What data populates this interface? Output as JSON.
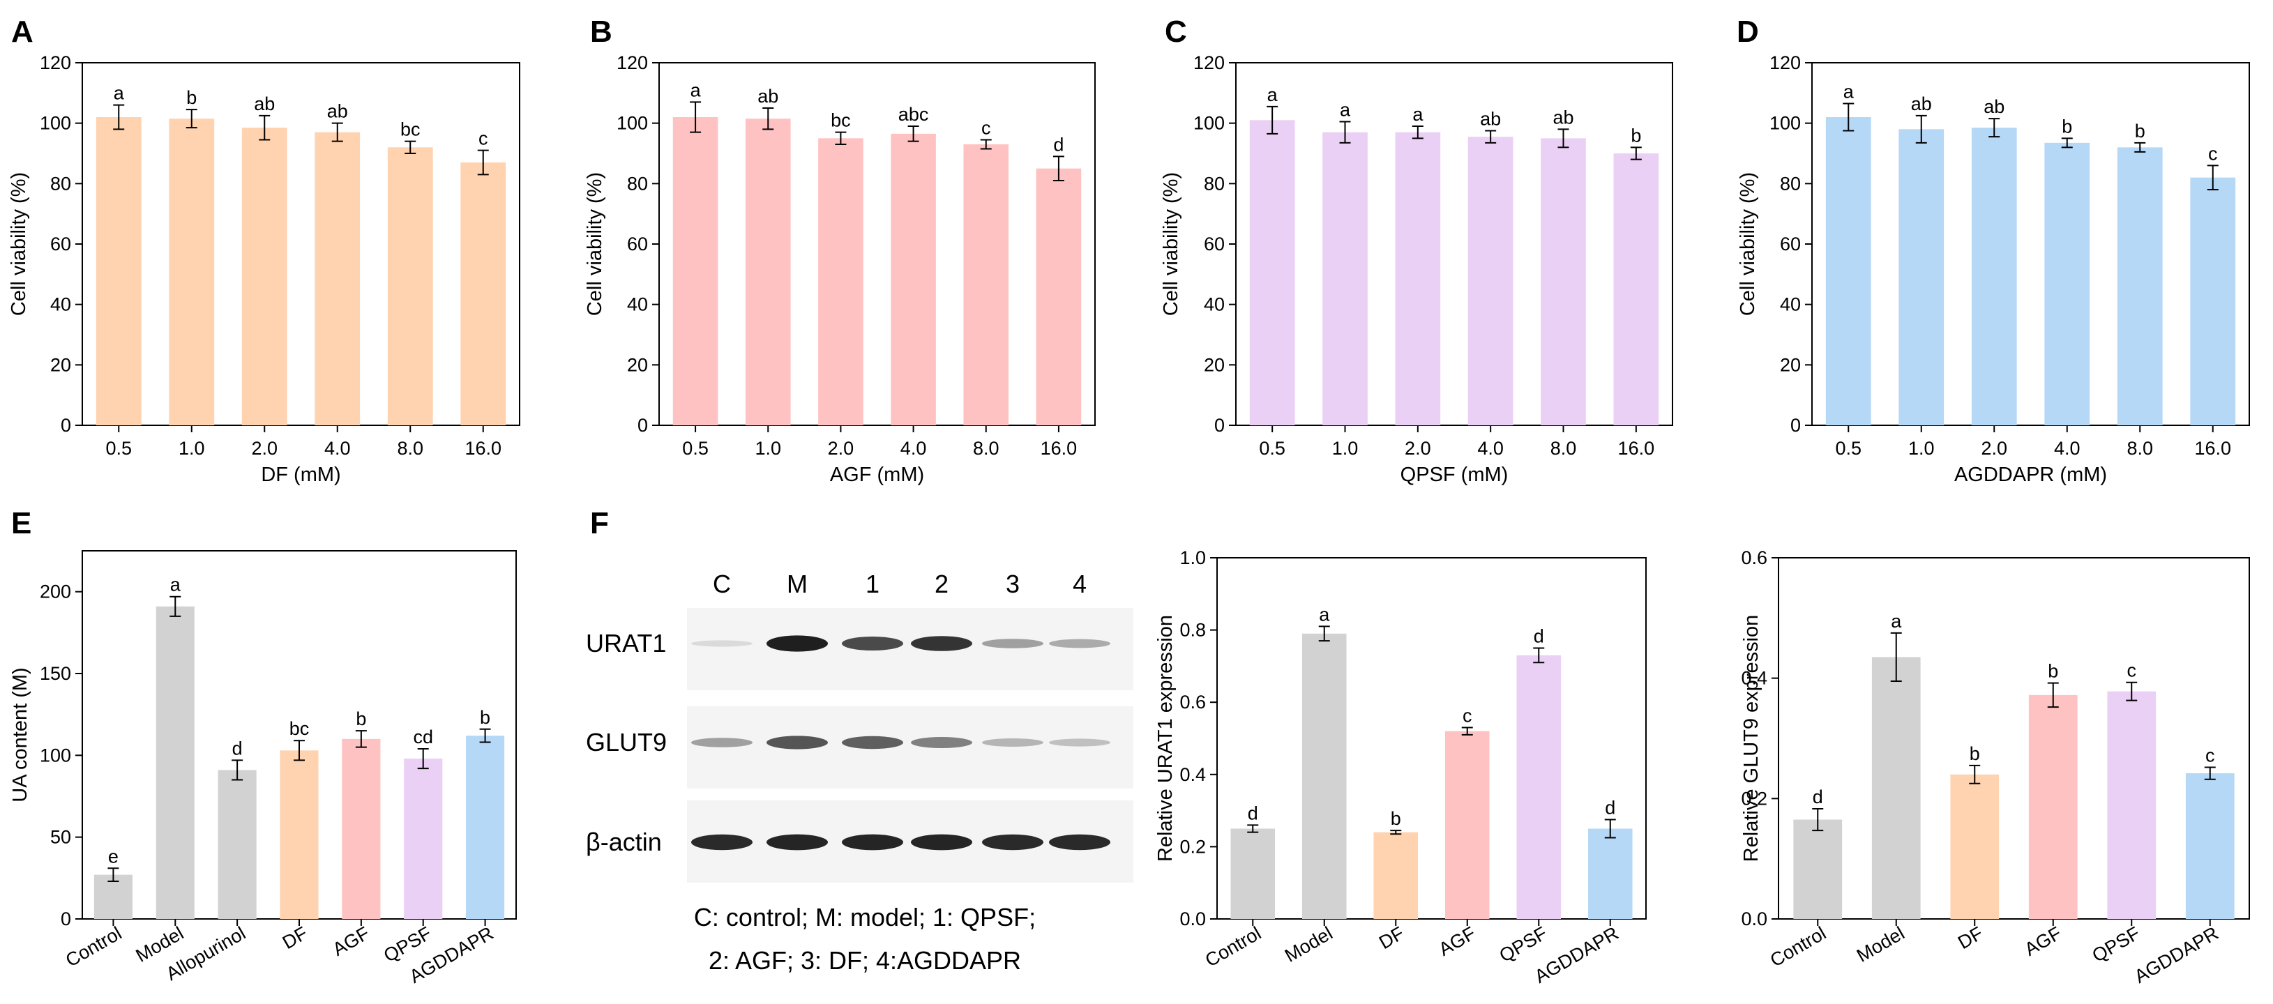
{
  "panel_labels": [
    "A",
    "B",
    "C",
    "D",
    "E",
    "F"
  ],
  "colors": {
    "DF": "#FFD3B0",
    "AGF": "#FFC2C2",
    "QPSF": "#EBD0F5",
    "AGDDAPR": "#B5D8F7",
    "gray": "#D2D2D2",
    "axis": "#000000"
  },
  "chart_data": [
    {
      "panel": "A",
      "type": "bar",
      "categories": [
        "0.5",
        "1.0",
        "2.0",
        "4.0",
        "8.0",
        "16.0"
      ],
      "values": [
        102,
        101.5,
        98.5,
        97,
        92,
        87
      ],
      "errors": [
        4,
        3,
        4,
        3,
        2,
        4
      ],
      "letters": [
        "a",
        "b",
        "ab",
        "ab",
        "bc",
        "c"
      ],
      "xlabel": "DF (mM)",
      "ylabel": "Cell viability (%)",
      "ylim": [
        0,
        120
      ],
      "yticks": [
        "0",
        "20",
        "40",
        "60",
        "80",
        "100",
        "120"
      ],
      "color_key": "DF"
    },
    {
      "panel": "B",
      "type": "bar",
      "categories": [
        "0.5",
        "1.0",
        "2.0",
        "4.0",
        "8.0",
        "16.0"
      ],
      "values": [
        102,
        101.5,
        95,
        96.5,
        93,
        85
      ],
      "errors": [
        5,
        3.5,
        2,
        2.5,
        1.5,
        4
      ],
      "letters": [
        "a",
        "ab",
        "bc",
        "abc",
        "c",
        "d"
      ],
      "xlabel": "AGF (mM)",
      "ylabel": "Cell viability (%)",
      "ylim": [
        0,
        120
      ],
      "yticks": [
        "0",
        "20",
        "40",
        "60",
        "80",
        "100",
        "120"
      ],
      "color_key": "AGF"
    },
    {
      "panel": "C",
      "type": "bar",
      "categories": [
        "0.5",
        "1.0",
        "2.0",
        "4.0",
        "8.0",
        "16.0"
      ],
      "values": [
        101,
        97,
        97,
        95.5,
        95,
        90
      ],
      "errors": [
        4.5,
        3.5,
        2,
        2,
        3,
        2
      ],
      "letters": [
        "a",
        "a",
        "a",
        "ab",
        "ab",
        "b"
      ],
      "xlabel": "QPSF (mM)",
      "ylabel": "Cell viability (%)",
      "ylim": [
        0,
        120
      ],
      "yticks": [
        "0",
        "20",
        "40",
        "60",
        "80",
        "100",
        "120"
      ],
      "color_key": "QPSF"
    },
    {
      "panel": "D",
      "type": "bar",
      "categories": [
        "0.5",
        "1.0",
        "2.0",
        "4.0",
        "8.0",
        "16.0"
      ],
      "values": [
        102,
        98,
        98.5,
        93.5,
        92,
        82
      ],
      "errors": [
        4.5,
        4.5,
        3,
        1.5,
        1.5,
        4
      ],
      "letters": [
        "a",
        "ab",
        "ab",
        "b",
        "b",
        "c"
      ],
      "xlabel": "AGDDAPR (mM)",
      "ylabel": "Cell viability (%)",
      "ylim": [
        0,
        120
      ],
      "yticks": [
        "0",
        "20",
        "40",
        "60",
        "80",
        "100",
        "120"
      ],
      "color_key": "AGDDAPR"
    },
    {
      "panel": "E",
      "type": "bar",
      "categories": [
        "Control",
        "Model",
        "Allopurinol",
        "DF",
        "AGF",
        "QPSF",
        "AGDDAPR"
      ],
      "values": [
        27,
        191,
        91,
        103,
        110,
        98,
        112
      ],
      "errors": [
        4,
        6,
        6,
        6,
        5,
        6,
        4
      ],
      "letters": [
        "e",
        "a",
        "d",
        "bc",
        "b",
        "cd",
        "b"
      ],
      "colors": [
        "gray",
        "gray",
        "gray",
        "DF",
        "AGF",
        "QPSF",
        "AGDDAPR"
      ],
      "xlabel": "",
      "ylabel": "UA content (M)",
      "ylim": [
        0,
        225
      ],
      "yticks": [
        "0",
        "50",
        "100",
        "150",
        "200"
      ],
      "ytick_values": [
        0,
        50,
        100,
        150,
        200
      ]
    },
    {
      "panel": "F-URAT1",
      "type": "bar",
      "categories": [
        "Control",
        "Model",
        "DF",
        "AGF",
        "QPSF",
        "AGDDAPR"
      ],
      "values": [
        0.25,
        0.79,
        0.24,
        0.52,
        0.73,
        0.25
      ],
      "errors": [
        0.01,
        0.02,
        0.005,
        0.01,
        0.02,
        0.025
      ],
      "letters": [
        "d",
        "a",
        "b",
        "c",
        "d",
        "d"
      ],
      "colors": [
        "gray",
        "gray",
        "DF",
        "AGF",
        "QPSF",
        "AGDDAPR"
      ],
      "xlabel": "",
      "ylabel": "Relative URAT1 expression",
      "ylim": [
        0,
        1.0
      ],
      "yticks": [
        "0.0",
        "0.2",
        "0.4",
        "0.6",
        "0.8",
        "1.0"
      ],
      "ytick_values": [
        0,
        0.2,
        0.4,
        0.6,
        0.8,
        1.0
      ]
    },
    {
      "panel": "F-GLUT9",
      "type": "bar",
      "categories": [
        "Control",
        "Model",
        "DF",
        "AGF",
        "QPSF",
        "AGDDAPR"
      ],
      "values": [
        0.165,
        0.435,
        0.24,
        0.372,
        0.378,
        0.242
      ],
      "errors": [
        0.018,
        0.04,
        0.015,
        0.02,
        0.015,
        0.01
      ],
      "letters": [
        "d",
        "a",
        "b",
        "b",
        "c",
        "c"
      ],
      "colors": [
        "gray",
        "gray",
        "DF",
        "AGF",
        "QPSF",
        "AGDDAPR"
      ],
      "xlabel": "",
      "ylabel": "Relative GLUT9 expression",
      "ylim": [
        0,
        0.6
      ],
      "yticks": [
        "0.0",
        "0.2",
        "0.4",
        "0.6"
      ],
      "ytick_values": [
        0,
        0.2,
        0.4,
        0.6
      ]
    }
  ],
  "blot": {
    "lanes": [
      "C",
      "M",
      "1",
      "2",
      "3",
      "4"
    ],
    "bands": [
      {
        "name": "URAT1",
        "intensity": [
          0.08,
          0.95,
          0.75,
          0.85,
          0.35,
          0.3
        ]
      },
      {
        "name": "GLUT9",
        "intensity": [
          0.35,
          0.7,
          0.65,
          0.5,
          0.25,
          0.2
        ]
      },
      {
        "name": "β-actin",
        "intensity": [
          0.9,
          0.92,
          0.92,
          0.92,
          0.9,
          0.9
        ]
      }
    ],
    "caption_line1": "C: control; M: model; 1: QPSF;",
    "caption_line2": "2: AGF; 3: DF; 4:AGDDAPR"
  }
}
